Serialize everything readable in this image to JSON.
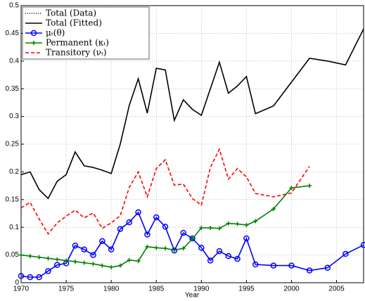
{
  "chart_data": {
    "type": "line",
    "x_label": "Year",
    "x": [
      1970,
      1971,
      1972,
      1973,
      1974,
      1975,
      1976,
      1977,
      1978,
      1979,
      1980,
      1981,
      1982,
      1983,
      1984,
      1985,
      1986,
      1987,
      1988,
      1989,
      1990,
      1991,
      1992,
      1993,
      1994,
      1995,
      1996,
      1998,
      2000,
      2002,
      2004,
      2006,
      2008
    ],
    "xlim": [
      1970,
      2008
    ],
    "xticks": [
      1970,
      1975,
      1980,
      1985,
      1990,
      1995,
      2000,
      2005
    ],
    "ylim": [
      0,
      0.5
    ],
    "yticks": [
      0,
      0.05,
      0.1,
      0.15,
      0.2,
      0.25,
      0.3,
      0.35,
      0.4,
      0.45,
      0.5
    ],
    "grid": true,
    "legend": "top-left",
    "series": [
      {
        "name": "Total (Data)",
        "color": "#000000",
        "style": "dotted",
        "marker": "none",
        "values": [
          0.195,
          0.2,
          0.168,
          0.152,
          0.183,
          0.195,
          0.236,
          0.211,
          0.208,
          0.203,
          0.197,
          0.25,
          0.32,
          0.368,
          0.306,
          0.387,
          0.384,
          0.293,
          0.33,
          0.313,
          0.302,
          0.35,
          0.398,
          0.342,
          0.355,
          0.372,
          0.305,
          0.319,
          0.362,
          0.405,
          0.4,
          0.393,
          0.458
        ]
      },
      {
        "name": "Total (Fitted)",
        "color": "#000000",
        "style": "solid",
        "marker": "none",
        "values": [
          0.195,
          0.2,
          0.168,
          0.152,
          0.183,
          0.195,
          0.236,
          0.211,
          0.208,
          0.203,
          0.197,
          0.25,
          0.32,
          0.368,
          0.306,
          0.387,
          0.384,
          0.293,
          0.33,
          0.313,
          0.302,
          0.35,
          0.398,
          0.342,
          0.355,
          0.372,
          0.305,
          0.319,
          0.362,
          0.405,
          0.4,
          0.393,
          0.458
        ]
      },
      {
        "name": "μₜ(θ)",
        "color": "#0000ff",
        "style": "solid",
        "marker": "circle",
        "values": [
          0.012,
          0.01,
          0.01,
          0.021,
          0.032,
          0.035,
          0.067,
          0.06,
          0.05,
          0.075,
          0.06,
          0.097,
          0.109,
          0.127,
          0.087,
          0.118,
          0.101,
          0.058,
          0.09,
          0.08,
          0.063,
          0.04,
          0.057,
          0.048,
          0.043,
          0.08,
          0.033,
          0.031,
          0.031,
          0.022,
          0.027,
          0.052,
          0.068
        ]
      },
      {
        "name": "Permanent (κₜ)",
        "color": "#008000",
        "style": "solid",
        "marker": "plus",
        "values": [
          0.05,
          0.048,
          0.046,
          0.044,
          0.042,
          0.04,
          0.038,
          0.036,
          0.034,
          0.031,
          0.028,
          0.031,
          0.041,
          0.039,
          0.065,
          0.063,
          0.062,
          0.059,
          0.062,
          0.079,
          0.099,
          0.099,
          0.098,
          0.107,
          0.106,
          0.104,
          0.111,
          0.133,
          0.171,
          0.175,
          null,
          null,
          null
        ]
      },
      {
        "name": "Transitory (νₜ)",
        "color": "#ff0000",
        "style": "dashed",
        "marker": "none",
        "values": [
          0.135,
          0.145,
          0.115,
          0.088,
          0.108,
          0.12,
          0.131,
          0.117,
          0.126,
          0.098,
          0.108,
          0.121,
          0.172,
          0.2,
          0.155,
          0.206,
          0.222,
          0.176,
          0.178,
          0.152,
          0.14,
          0.208,
          0.241,
          0.187,
          0.206,
          0.191,
          0.161,
          0.155,
          0.162,
          0.21,
          null,
          null,
          null
        ]
      }
    ]
  }
}
